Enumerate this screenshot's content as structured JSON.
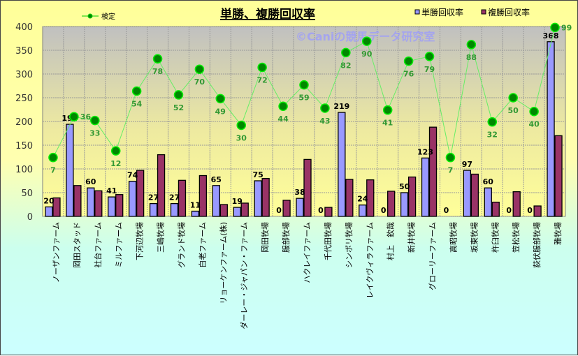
{
  "chart_data": {
    "type": "bar",
    "title": "単勝、複勝回収率",
    "watermark": "©Caniの競馬データ研究室",
    "ylim": [
      0,
      400
    ],
    "yticks": [
      0,
      50,
      100,
      150,
      200,
      250,
      300,
      350,
      400
    ],
    "grid": true,
    "legend_placement": "top",
    "categories": [
      "ノーザンファーム",
      "岡田スタッド",
      "社台ファーム",
      "ミルファーム",
      "下河辺牧場",
      "三嶋牧場",
      "グランド牧場",
      "白老ファーム",
      "リョーケンファーム(株)",
      "ダーレー・ジャパン・ファーム",
      "岡田牧場",
      "服部牧場",
      "ハクレイファーム",
      "千代田牧場",
      "シンボリ牧場",
      "レイクヴィラファーム",
      "村上　欽哉",
      "新井牧場",
      "グローリーファーム",
      "高昭牧場",
      "坂東牧場",
      "杵臼牧場",
      "笠松牧場",
      "荻伏服部牧場",
      "雅牧場"
    ],
    "series": [
      {
        "name": "単勝回収率",
        "color": "#9999ff",
        "values": [
          20,
          194,
          60,
          41,
          74,
          27,
          27,
          11,
          65,
          19,
          75,
          0,
          38,
          0,
          219,
          24,
          0,
          50,
          123,
          0,
          97,
          60,
          0,
          0,
          368
        ]
      },
      {
        "name": "複勝回収率",
        "color": "#993366",
        "values": [
          39,
          65,
          54,
          46,
          97,
          130,
          76,
          86,
          25,
          28,
          80,
          34,
          120,
          19,
          78,
          77,
          53,
          83,
          188,
          0,
          89,
          30,
          52,
          22,
          170
        ]
      },
      {
        "name": "検定",
        "type": "line",
        "color": "#00cc00",
        "values": [
          124,
          210,
          202,
          138,
          264,
          332,
          256,
          310,
          248,
          192,
          314,
          232,
          277,
          228,
          345,
          369,
          224,
          327,
          337,
          124,
          362,
          199,
          250,
          221,
          398
        ],
        "labels": [
          "7",
          "36",
          "33",
          "12",
          "54",
          "78",
          "52",
          "70",
          "49",
          "30",
          "72",
          "44",
          "59",
          "43",
          "82",
          "90",
          "41",
          "76",
          "79",
          "7",
          "88",
          "32",
          "50",
          "40",
          "99"
        ]
      }
    ]
  }
}
